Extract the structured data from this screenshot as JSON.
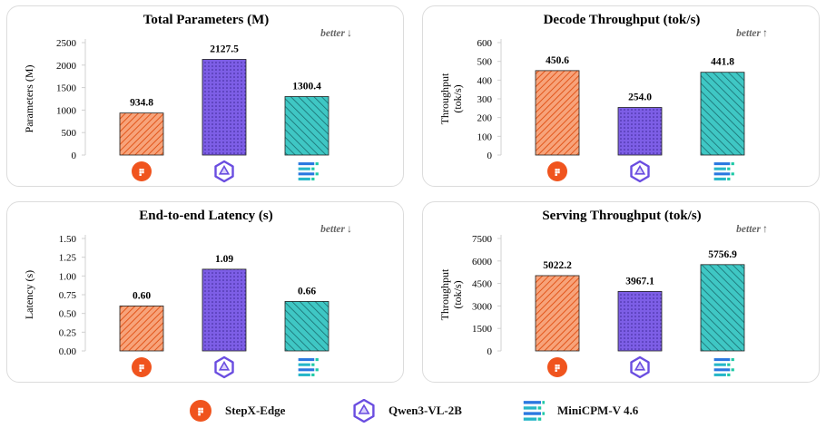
{
  "colors": {
    "stepx": "#f47a3f",
    "qwen": "#7b5ce0",
    "minicpm": "#34c1c0"
  },
  "legend": [
    {
      "label": "StepX-Edge",
      "icon": "stepx-logo-icon"
    },
    {
      "label": "Qwen3-VL-2B",
      "icon": "qwen-logo-icon"
    },
    {
      "label": "MiniCPM-V 4.6",
      "icon": "minicpm-logo-icon"
    }
  ],
  "chart_data": [
    {
      "type": "bar",
      "title": "Total Parameters (M)",
      "ylabel": "Parameters (M)",
      "hint": "better",
      "hint_arrow": "↓",
      "categories": [
        "StepX-Edge",
        "Qwen3-VL-2B",
        "MiniCPM-V 4.6"
      ],
      "values": [
        934.8,
        2127.5,
        1300.4
      ],
      "value_labels": [
        "934.8",
        "2127.5",
        "1300.4"
      ],
      "ylim": [
        0,
        2500
      ],
      "yticks": [
        "0",
        "500",
        "1000",
        "1500",
        "2000",
        "2500"
      ]
    },
    {
      "type": "bar",
      "title": "Decode Throughput (tok/s)",
      "ylabel": "Throughput (tok/s)",
      "hint": "better",
      "hint_arrow": "↑",
      "categories": [
        "StepX-Edge",
        "Qwen3-VL-2B",
        "MiniCPM-V 4.6"
      ],
      "values": [
        450.6,
        254.0,
        441.8
      ],
      "value_labels": [
        "450.6",
        "254.0",
        "441.8"
      ],
      "ylim": [
        0,
        600
      ],
      "yticks": [
        "0",
        "100",
        "200",
        "300",
        "400",
        "500",
        "600"
      ]
    },
    {
      "type": "bar",
      "title": "End-to-end Latency (s)",
      "ylabel": "Latency (s)",
      "hint": "better",
      "hint_arrow": "↓",
      "categories": [
        "StepX-Edge",
        "Qwen3-VL-2B",
        "MiniCPM-V 4.6"
      ],
      "values": [
        0.6,
        1.09,
        0.66
      ],
      "value_labels": [
        "0.60",
        "1.09",
        "0.66"
      ],
      "ylim": [
        0,
        1.5
      ],
      "yticks": [
        "0.00",
        "0.25",
        "0.50",
        "0.75",
        "1.00",
        "1.25",
        "1.50"
      ]
    },
    {
      "type": "bar",
      "title": "Serving Throughput (tok/s)",
      "ylabel": "Throughput (tok/s)",
      "hint": "better",
      "hint_arrow": "↑",
      "categories": [
        "StepX-Edge",
        "Qwen3-VL-2B",
        "MiniCPM-V 4.6"
      ],
      "values": [
        5022.2,
        3967.1,
        5756.9
      ],
      "value_labels": [
        "5022.2",
        "3967.1",
        "5756.9"
      ],
      "ylim": [
        0,
        7500
      ],
      "yticks": [
        "0",
        "1500",
        "3000",
        "4500",
        "6000",
        "7500"
      ]
    }
  ]
}
